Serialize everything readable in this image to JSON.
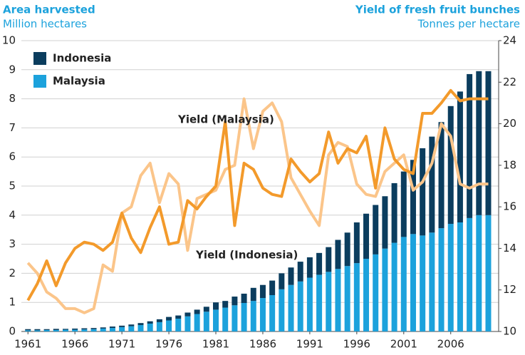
{
  "chart_data": {
    "type": "bar",
    "stacked": true,
    "title_left": "Area harvested",
    "subtitle_left": "Million hectares",
    "title_right": "Yield of fresh fruit bunches",
    "subtitle_right": "Tonnes per hectare",
    "x": [
      1961,
      1962,
      1963,
      1964,
      1965,
      1966,
      1967,
      1968,
      1969,
      1970,
      1971,
      1972,
      1973,
      1974,
      1975,
      1976,
      1977,
      1978,
      1979,
      1980,
      1981,
      1982,
      1983,
      1984,
      1985,
      1986,
      1987,
      1988,
      1989,
      1990,
      1991,
      1992,
      1993,
      1994,
      1995,
      1996,
      1997,
      1998,
      1999,
      2000,
      2001,
      2002,
      2003,
      2004,
      2005,
      2006,
      2007,
      2008,
      2009,
      2010
    ],
    "xlim": [
      1960.3,
      2011.1
    ],
    "xticks": [
      1961,
      1966,
      1971,
      1976,
      1981,
      1986,
      1991,
      1996,
      2001,
      2006
    ],
    "ylim": [
      0,
      10
    ],
    "yticks": [
      0,
      1,
      2,
      3,
      4,
      5,
      6,
      7,
      8,
      9,
      10
    ],
    "y2lim": [
      10,
      24
    ],
    "y2ticks": [
      10,
      12,
      14,
      16,
      18,
      20,
      22,
      24
    ],
    "grid": true,
    "legend": "upper left",
    "series": [
      {
        "name": "Malaysia",
        "color": "#1ca2dc",
        "type": "bar",
        "values": [
          0.04,
          0.04,
          0.05,
          0.05,
          0.06,
          0.06,
          0.07,
          0.08,
          0.1,
          0.12,
          0.15,
          0.18,
          0.22,
          0.27,
          0.32,
          0.38,
          0.44,
          0.52,
          0.6,
          0.68,
          0.75,
          0.82,
          0.9,
          0.98,
          1.05,
          1.15,
          1.25,
          1.45,
          1.6,
          1.72,
          1.85,
          1.95,
          2.05,
          2.15,
          2.25,
          2.35,
          2.5,
          2.65,
          2.85,
          3.05,
          3.25,
          3.35,
          3.3,
          3.4,
          3.55,
          3.7,
          3.75,
          3.9,
          4.0,
          4.0
        ]
      },
      {
        "name": "Indonesia",
        "color": "#0b3d5e",
        "type": "bar",
        "values": [
          0.04,
          0.04,
          0.03,
          0.04,
          0.03,
          0.04,
          0.04,
          0.04,
          0.04,
          0.05,
          0.05,
          0.06,
          0.07,
          0.08,
          0.1,
          0.12,
          0.11,
          0.13,
          0.15,
          0.17,
          0.25,
          0.23,
          0.3,
          0.32,
          0.45,
          0.45,
          0.5,
          0.55,
          0.6,
          0.68,
          0.7,
          0.75,
          0.85,
          1.0,
          1.15,
          1.4,
          1.55,
          1.7,
          1.8,
          2.05,
          2.25,
          2.55,
          3.0,
          3.3,
          3.65,
          4.05,
          4.5,
          4.95,
          4.95,
          4.95
        ]
      },
      {
        "name": "Yield (Indonesia)",
        "color": "#fbc58a",
        "type": "line",
        "axis": "y2",
        "values": [
          13.3,
          12.8,
          11.9,
          11.6,
          11.1,
          11.1,
          10.9,
          11.1,
          13.2,
          12.9,
          15.7,
          16.0,
          17.5,
          18.1,
          16.2,
          17.6,
          17.1,
          13.9,
          16.4,
          16.6,
          16.8,
          17.8,
          18.0,
          21.2,
          18.8,
          20.6,
          21.0,
          20.1,
          17.4,
          16.6,
          15.8,
          15.1,
          18.5,
          19.1,
          18.9,
          17.1,
          16.6,
          16.5,
          17.7,
          18.1,
          18.5,
          16.8,
          17.2,
          18.1,
          20.0,
          19.4,
          17.1,
          16.9,
          17.1,
          17.1
        ]
      },
      {
        "name": "Yield (Malaysia)",
        "color": "#f39a2b",
        "type": "line",
        "axis": "y2",
        "values": [
          11.5,
          12.3,
          13.4,
          12.2,
          13.3,
          14.0,
          14.3,
          14.2,
          13.9,
          14.3,
          15.7,
          14.5,
          13.8,
          15.0,
          16.0,
          14.2,
          14.3,
          16.3,
          15.9,
          16.5,
          17.0,
          20.1,
          15.1,
          18.1,
          17.8,
          16.9,
          16.6,
          16.5,
          18.3,
          17.7,
          17.2,
          17.6,
          19.6,
          18.1,
          18.8,
          18.6,
          19.4,
          16.9,
          19.8,
          18.3,
          17.8,
          17.6,
          20.5,
          20.5,
          21.0,
          21.6,
          21.1,
          21.2,
          21.2,
          21.2
        ]
      }
    ]
  }
}
